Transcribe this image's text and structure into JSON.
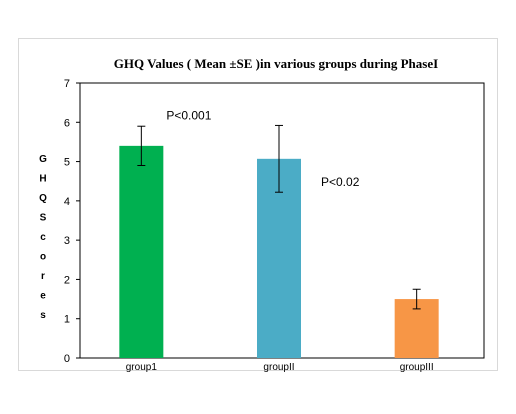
{
  "chart_data": {
    "type": "bar",
    "title": "GHQ Values ( Mean ±SE )in various groups during PhaseI",
    "categories": [
      "group1",
      "groupII",
      "groupIII"
    ],
    "values": [
      5.4,
      5.07,
      1.5
    ],
    "errors": [
      0.5,
      0.85,
      0.25
    ],
    "colors": [
      "#00b050",
      "#4bacc6",
      "#f79646"
    ],
    "ylabel": "GHQScores",
    "xlabel": "",
    "ylim": [
      0,
      7
    ],
    "yticks": [
      0,
      1,
      2,
      3,
      4,
      5,
      6,
      7
    ],
    "grid": false,
    "legend": "none",
    "annotations": [
      {
        "text": "P<0.001",
        "x": "group1",
        "y": 5.0
      },
      {
        "text": "P<0.02",
        "x": "groupII",
        "y": 4.3
      }
    ]
  }
}
